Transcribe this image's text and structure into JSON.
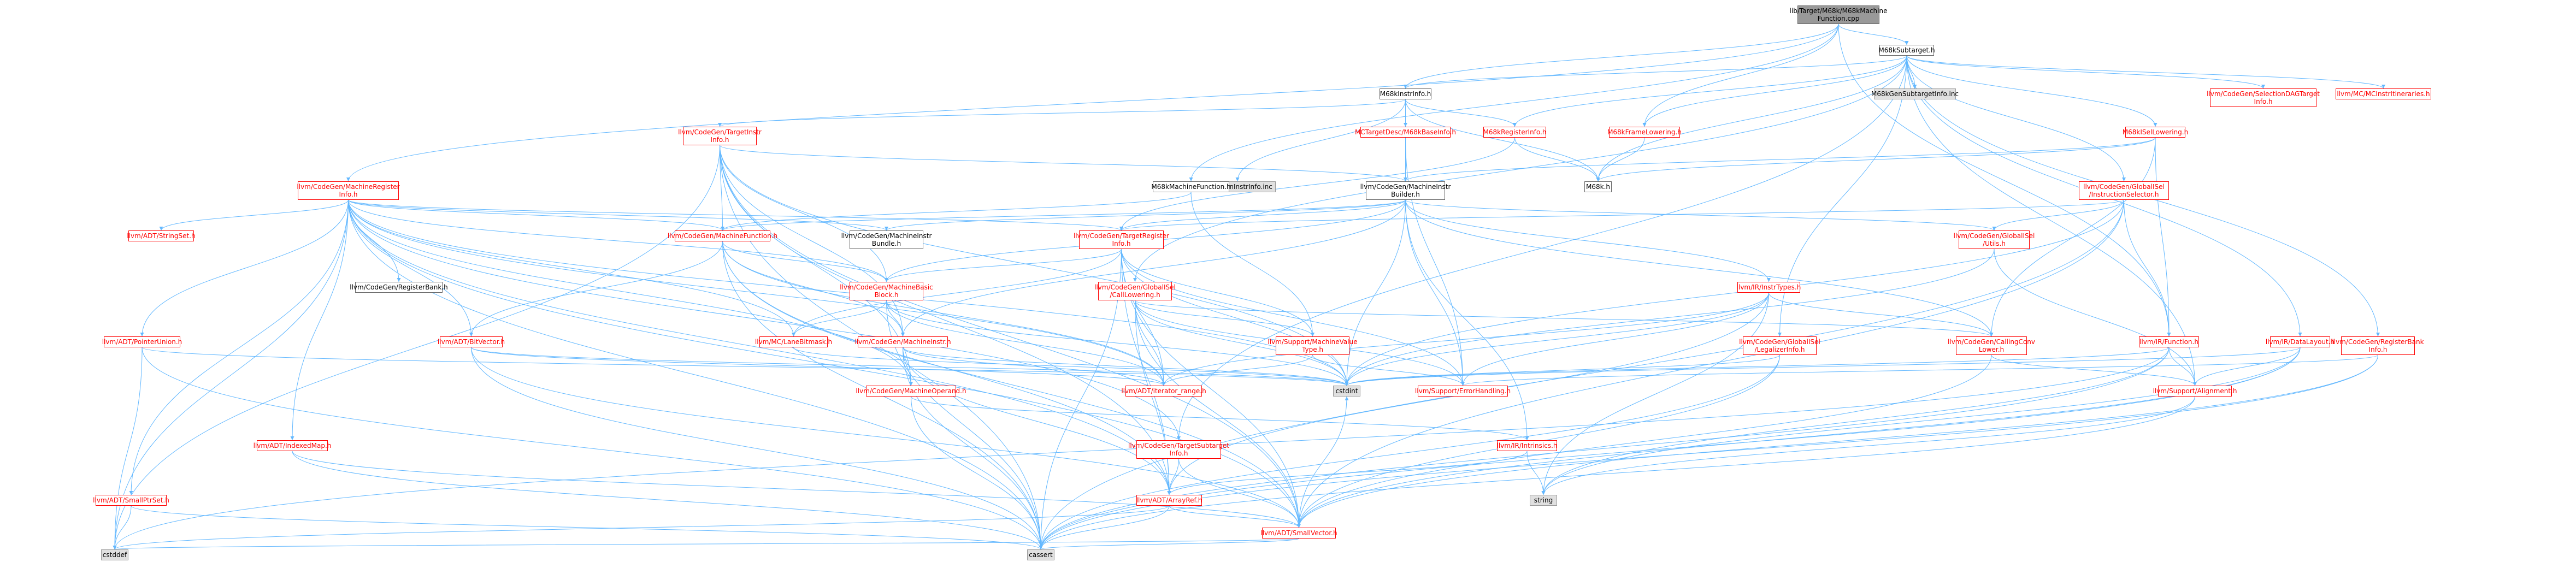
{
  "graph": {
    "nodes": [
      {
        "id": "root",
        "label": "lib/Target/M68k/M68kMachine\nFunction.cpp",
        "kind": "root"
      },
      {
        "id": "subtarget",
        "label": "M68kSubtarget.h",
        "kind": "plain"
      },
      {
        "id": "instrinfo",
        "label": "M68kInstrInfo.h",
        "kind": "plain"
      },
      {
        "id": "targetinstrinfo",
        "label": "llvm/CodeGen/TargetInstr\nInfo.h",
        "kind": "link"
      },
      {
        "id": "mcdesc",
        "label": "MCTargetDesc/M68kBaseInfo.h",
        "kind": "link"
      },
      {
        "id": "reginfo",
        "label": "M68kRegisterInfo.h",
        "kind": "link"
      },
      {
        "id": "genreginfo",
        "label": "M68kGenInstrInfo.inc",
        "kind": "gray"
      },
      {
        "id": "machinefunction_h",
        "label": "M68kMachineFunction.h",
        "kind": "plain"
      },
      {
        "id": "mir_builder",
        "label": "llvm/CodeGen/MachineInstr\nBuilder.h",
        "kind": "plain"
      },
      {
        "id": "m68k_h",
        "label": "M68k.h",
        "kind": "plain"
      },
      {
        "id": "framelowering",
        "label": "M68kFrameLowering.h",
        "kind": "link"
      },
      {
        "id": "genSubtargetInfo",
        "label": "M68kGenSubtargetInfo.inc",
        "kind": "gray"
      },
      {
        "id": "isellowering",
        "label": "M68kISelLowering.h",
        "kind": "link"
      },
      {
        "id": "gisel_is",
        "label": "llvm/CodeGen/GlobalISel\n/InstructionSelector.h",
        "kind": "link"
      },
      {
        "id": "seldagtarget",
        "label": "llvm/CodeGen/SelectionDAGTarget\nInfo.h",
        "kind": "link"
      },
      {
        "id": "mcinstritin",
        "label": "llvm/MC/MCInstrItineraries.h",
        "kind": "link"
      },
      {
        "id": "mri_h",
        "label": "llvm/CodeGen/MachineRegister\nInfo.h",
        "kind": "link"
      },
      {
        "id": "mf_h",
        "label": "llvm/CodeGen/MachineFunction.h",
        "kind": "link"
      },
      {
        "id": "mib_h",
        "label": "llvm/CodeGen/MachineInstr\nBundle.h",
        "kind": "plain"
      },
      {
        "id": "tri_h",
        "label": "llvm/CodeGen/TargetRegister\nInfo.h",
        "kind": "link"
      },
      {
        "id": "gisel_utils",
        "label": "llvm/CodeGen/GlobalISel\n/Utils.h",
        "kind": "link"
      },
      {
        "id": "stringset",
        "label": "llvm/ADT/StringSet.h",
        "kind": "link"
      },
      {
        "id": "regbank_cg",
        "label": "llvm/CodeGen/RegisterBank.h",
        "kind": "plain"
      },
      {
        "id": "mbb_h",
        "label": "llvm/CodeGen/MachineBasic\nBlock.h",
        "kind": "link"
      },
      {
        "id": "gisel_cl",
        "label": "llvm/CodeGen/GlobalISel\n/CallLowering.h",
        "kind": "link"
      },
      {
        "id": "instrtypes",
        "label": "llvm/IR/InstrTypes.h",
        "kind": "link"
      },
      {
        "id": "pointerunion",
        "label": "llvm/ADT/PointerUnion.h",
        "kind": "link"
      },
      {
        "id": "bitvector",
        "label": "llvm/ADT/BitVector.h",
        "kind": "link"
      },
      {
        "id": "lanebitmask",
        "label": "llvm/MC/LaneBitmask.h",
        "kind": "link"
      },
      {
        "id": "mi_h",
        "label": "llvm/CodeGen/MachineInstr.h",
        "kind": "link"
      },
      {
        "id": "mvt_h",
        "label": "llvm/Support/MachineValue\nType.h",
        "kind": "link"
      },
      {
        "id": "legalizer",
        "label": "llvm/CodeGen/GlobalISel\n/LegalizerInfo.h",
        "kind": "link"
      },
      {
        "id": "callconv",
        "label": "llvm/CodeGen/CallingConv\nLower.h",
        "kind": "link"
      },
      {
        "id": "irfunction",
        "label": "llvm/IR/Function.h",
        "kind": "link"
      },
      {
        "id": "datalayout",
        "label": "llvm/IR/DataLayout.h",
        "kind": "link"
      },
      {
        "id": "regbankinfo",
        "label": "llvm/CodeGen/RegisterBank\nInfo.h",
        "kind": "link"
      },
      {
        "id": "mo_h",
        "label": "llvm/CodeGen/MachineOperand.h",
        "kind": "link"
      },
      {
        "id": "iter_range",
        "label": "llvm/ADT/iterator_range.h",
        "kind": "link"
      },
      {
        "id": "cstdint",
        "label": "cstdint",
        "kind": "ext"
      },
      {
        "id": "errhandling",
        "label": "llvm/Support/ErrorHandling.h",
        "kind": "link"
      },
      {
        "id": "alignment",
        "label": "llvm/Support/Alignment.h",
        "kind": "link"
      },
      {
        "id": "indexedmap",
        "label": "llvm/ADT/IndexedMap.h",
        "kind": "link"
      },
      {
        "id": "tsi_h",
        "label": "llvm/CodeGen/TargetSubtarget\nInfo.h",
        "kind": "link"
      },
      {
        "id": "intrinsics",
        "label": "llvm/IR/Intrinsics.h",
        "kind": "link"
      },
      {
        "id": "smallptrset",
        "label": "llvm/ADT/SmallPtrSet.h",
        "kind": "link"
      },
      {
        "id": "arrayref",
        "label": "llvm/ADT/ArrayRef.h",
        "kind": "link"
      },
      {
        "id": "string",
        "label": "string",
        "kind": "ext"
      },
      {
        "id": "smallvector",
        "label": "llvm/ADT/SmallVector.h",
        "kind": "link"
      },
      {
        "id": "cstddef",
        "label": "cstddef",
        "kind": "ext"
      },
      {
        "id": "cassert",
        "label": "cassert",
        "kind": "ext"
      }
    ],
    "edges": [
      [
        "root",
        "subtarget"
      ],
      [
        "root",
        "instrinfo"
      ],
      [
        "root",
        "machinefunction_h"
      ],
      [
        "root",
        "mri_h"
      ],
      [
        "root",
        "irfunction"
      ],
      [
        "root",
        "framelowering"
      ],
      [
        "subtarget",
        "instrinfo"
      ],
      [
        "subtarget",
        "genSubtargetInfo"
      ],
      [
        "subtarget",
        "isellowering"
      ],
      [
        "subtarget",
        "gisel_is"
      ],
      [
        "subtarget",
        "seldagtarget"
      ],
      [
        "subtarget",
        "mcinstritin"
      ],
      [
        "subtarget",
        "framelowering"
      ],
      [
        "subtarget",
        "gisel_cl"
      ],
      [
        "subtarget",
        "legalizer"
      ],
      [
        "subtarget",
        "regbankinfo"
      ],
      [
        "subtarget",
        "datalayout"
      ],
      [
        "subtarget",
        "m68k_h"
      ],
      [
        "subtarget",
        "reginfo"
      ],
      [
        "subtarget",
        "tsi_h"
      ],
      [
        "subtarget",
        "alignment"
      ],
      [
        "instrinfo",
        "targetinstrinfo"
      ],
      [
        "instrinfo",
        "mcdesc"
      ],
      [
        "instrinfo",
        "reginfo"
      ],
      [
        "instrinfo",
        "genreginfo"
      ],
      [
        "instrinfo",
        "mir_builder"
      ],
      [
        "instrinfo",
        "m68k_h"
      ],
      [
        "targetinstrinfo",
        "mf_h"
      ],
      [
        "targetinstrinfo",
        "mir_builder"
      ],
      [
        "targetinstrinfo",
        "mi_h"
      ],
      [
        "targetinstrinfo",
        "mbb_h"
      ],
      [
        "targetinstrinfo",
        "mo_h"
      ],
      [
        "targetinstrinfo",
        "arrayref"
      ],
      [
        "targetinstrinfo",
        "cstddef"
      ],
      [
        "targetinstrinfo",
        "cstdint"
      ],
      [
        "targetinstrinfo",
        "cassert"
      ],
      [
        "targetinstrinfo",
        "smallvector"
      ],
      [
        "mcdesc",
        "errhandling"
      ],
      [
        "reginfo",
        "tri_h"
      ],
      [
        "reginfo",
        "m68k_h"
      ],
      [
        "machinefunction_h",
        "mf_h"
      ],
      [
        "machinefunction_h",
        "mvt_h"
      ],
      [
        "mir_builder",
        "mf_h"
      ],
      [
        "mir_builder",
        "mib_h"
      ],
      [
        "mir_builder",
        "mbb_h"
      ],
      [
        "mir_builder",
        "mi_h"
      ],
      [
        "mir_builder",
        "tri_h"
      ],
      [
        "mir_builder",
        "gisel_utils"
      ],
      [
        "mir_builder",
        "instrtypes"
      ],
      [
        "mir_builder",
        "intrinsics"
      ],
      [
        "mir_builder",
        "errhandling"
      ],
      [
        "mir_builder",
        "cstdint"
      ],
      [
        "mir_builder",
        "callconv"
      ],
      [
        "framelowering",
        "m68k_h"
      ],
      [
        "isellowering",
        "m68k_h"
      ],
      [
        "isellowering",
        "mir_builder"
      ],
      [
        "isellowering",
        "irfunction"
      ],
      [
        "isellowering",
        "callconv"
      ],
      [
        "gisel_is",
        "gisel_utils"
      ],
      [
        "gisel_is",
        "tri_h"
      ],
      [
        "gisel_is",
        "smallvector"
      ],
      [
        "gisel_is",
        "cstdint"
      ],
      [
        "gisel_is",
        "irfunction"
      ],
      [
        "gisel_is",
        "cassert"
      ],
      [
        "mri_h",
        "mf_h"
      ],
      [
        "mri_h",
        "mib_h"
      ],
      [
        "mri_h",
        "tri_h"
      ],
      [
        "mri_h",
        "stringset"
      ],
      [
        "mri_h",
        "regbank_cg"
      ],
      [
        "mri_h",
        "mbb_h"
      ],
      [
        "mri_h",
        "pointerunion"
      ],
      [
        "mri_h",
        "bitvector"
      ],
      [
        "mri_h",
        "lanebitmask"
      ],
      [
        "mri_h",
        "mo_h"
      ],
      [
        "mri_h",
        "iter_range"
      ],
      [
        "mri_h",
        "indexedmap"
      ],
      [
        "mri_h",
        "smallptrset"
      ],
      [
        "mri_h",
        "arrayref"
      ],
      [
        "mri_h",
        "smallvector"
      ],
      [
        "mri_h",
        "cassert"
      ],
      [
        "mri_h",
        "cstddef"
      ],
      [
        "mri_h",
        "cstdint"
      ],
      [
        "mri_h",
        "tsi_h"
      ],
      [
        "mf_h",
        "mbb_h"
      ],
      [
        "mf_h",
        "mi_h"
      ],
      [
        "mf_h",
        "bitvector"
      ],
      [
        "mf_h",
        "arrayref"
      ],
      [
        "mf_h",
        "smallvector"
      ],
      [
        "mf_h",
        "cassert"
      ],
      [
        "mf_h",
        "iter_range"
      ],
      [
        "tri_h",
        "mbb_h"
      ],
      [
        "tri_h",
        "mvt_h"
      ],
      [
        "tri_h",
        "lanebitmask"
      ],
      [
        "tri_h",
        "arrayref"
      ],
      [
        "tri_h",
        "smallvector"
      ],
      [
        "tri_h",
        "cstdint"
      ],
      [
        "tri_h",
        "cassert"
      ],
      [
        "tri_h",
        "iter_range"
      ],
      [
        "tri_h",
        "errhandling"
      ],
      [
        "gisel_utils",
        "alignment"
      ],
      [
        "gisel_utils",
        "cstdint"
      ],
      [
        "mbb_h",
        "mi_h"
      ],
      [
        "mbb_h",
        "lanebitmask"
      ],
      [
        "mbb_h",
        "iter_range"
      ],
      [
        "mbb_h",
        "cassert"
      ],
      [
        "mbb_h",
        "cstdint"
      ],
      [
        "gisel_cl",
        "mvt_h"
      ],
      [
        "gisel_cl",
        "callconv"
      ],
      [
        "gisel_cl",
        "arrayref"
      ],
      [
        "gisel_cl",
        "smallvector"
      ],
      [
        "gisel_cl",
        "errhandling"
      ],
      [
        "gisel_cl",
        "cstdint"
      ],
      [
        "gisel_cl",
        "iter_range"
      ],
      [
        "instrtypes",
        "arrayref"
      ],
      [
        "instrtypes",
        "iter_range"
      ],
      [
        "instrtypes",
        "errhandling"
      ],
      [
        "instrtypes",
        "string"
      ],
      [
        "instrtypes",
        "cstdint"
      ],
      [
        "instrtypes",
        "callconv"
      ],
      [
        "pointerunion",
        "cstddef"
      ],
      [
        "pointerunion",
        "cassert"
      ],
      [
        "pointerunion",
        "cstdint"
      ],
      [
        "bitvector",
        "iter_range"
      ],
      [
        "bitvector",
        "cassert"
      ],
      [
        "bitvector",
        "cstdint"
      ],
      [
        "bitvector",
        "smallvector"
      ],
      [
        "lanebitmask",
        "cstdint"
      ],
      [
        "mi_h",
        "mo_h"
      ],
      [
        "mi_h",
        "iter_range"
      ],
      [
        "mi_h",
        "arrayref"
      ],
      [
        "mi_h",
        "cassert"
      ],
      [
        "mi_h",
        "cstdint"
      ],
      [
        "mvt_h",
        "errhandling"
      ],
      [
        "mvt_h",
        "iter_range"
      ],
      [
        "legalizer",
        "smallvector"
      ],
      [
        "legalizer",
        "cstdint"
      ],
      [
        "legalizer",
        "cassert"
      ],
      [
        "callconv",
        "alignment"
      ],
      [
        "callconv",
        "smallvector"
      ],
      [
        "irfunction",
        "alignment"
      ],
      [
        "irfunction",
        "string"
      ],
      [
        "irfunction",
        "cassert"
      ],
      [
        "irfunction",
        "cstddef"
      ],
      [
        "irfunction",
        "cstdint"
      ],
      [
        "datalayout",
        "alignment"
      ],
      [
        "datalayout",
        "smallvector"
      ],
      [
        "datalayout",
        "string"
      ],
      [
        "datalayout",
        "cassert"
      ],
      [
        "datalayout",
        "cstdint"
      ],
      [
        "regbankinfo",
        "errhandling"
      ],
      [
        "regbankinfo",
        "smallvector"
      ],
      [
        "regbankinfo",
        "cassert"
      ],
      [
        "mo_h",
        "intrinsics"
      ],
      [
        "mo_h",
        "cassert"
      ],
      [
        "alignment",
        "string"
      ],
      [
        "alignment",
        "cassert"
      ],
      [
        "indexedmap",
        "smallvector"
      ],
      [
        "indexedmap",
        "cassert"
      ],
      [
        "tsi_h",
        "arrayref"
      ],
      [
        "tsi_h",
        "smallvector"
      ],
      [
        "smallptrset",
        "cstddef"
      ],
      [
        "smallptrset",
        "cassert"
      ],
      [
        "arrayref",
        "smallvector"
      ],
      [
        "arrayref",
        "cassert"
      ],
      [
        "arrayref",
        "cstddef"
      ],
      [
        "smallvector",
        "cassert"
      ],
      [
        "smallvector",
        "cstddef"
      ],
      [
        "smallvector",
        "cstdint"
      ],
      [
        "intrinsics",
        "string"
      ],
      [
        "intrinsics",
        "arrayref"
      ]
    ]
  },
  "colors": {
    "edge": "#63b8ff",
    "link_text": "#ff0000",
    "root_fill": "#999999",
    "ext_fill": "#e0e0e0"
  }
}
